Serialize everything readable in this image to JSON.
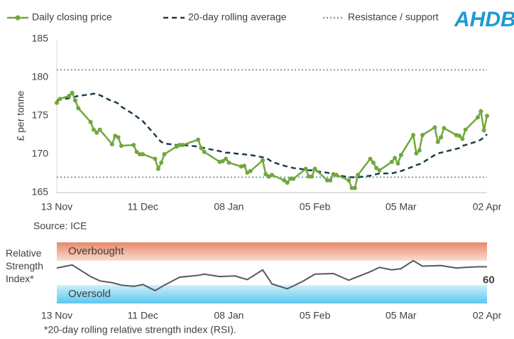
{
  "logo": "AHDB",
  "chart_data": [
    {
      "type": "line",
      "y_label": "£ per tonne",
      "source": "Source: ICE",
      "legend": "top",
      "x": [
        0,
        1,
        4,
        5,
        6,
        7,
        11,
        12,
        13,
        14,
        18,
        19,
        20,
        21,
        25,
        26,
        27,
        28,
        32,
        33,
        34,
        35,
        39,
        40,
        41,
        46,
        47,
        48,
        53,
        54,
        55,
        56,
        60,
        61,
        62,
        63,
        67,
        68,
        69,
        70,
        74,
        75,
        76,
        77,
        81,
        82,
        83,
        84,
        88,
        89,
        90,
        91,
        95,
        96,
        97,
        98,
        102,
        103,
        104,
        105,
        109,
        110,
        111,
        112,
        116,
        117,
        118,
        119,
        123,
        124,
        125,
        126,
        130,
        131,
        132,
        133,
        137,
        138,
        139,
        140
      ],
      "xlim": [
        0,
        140
      ],
      "xticks": [
        {
          "value": 0,
          "label": "13 Nov"
        },
        {
          "value": 28,
          "label": "11 Dec"
        },
        {
          "value": 56,
          "label": "08 Jan"
        },
        {
          "value": 84,
          "label": "05 Feb"
        },
        {
          "value": 112,
          "label": "05 Mar"
        },
        {
          "value": 140,
          "label": "02 Apr"
        }
      ],
      "ylim": [
        165,
        185
      ],
      "yticks": [
        165,
        170,
        175,
        180,
        185
      ],
      "series": [
        {
          "name": "Daily closing price",
          "color": "#70a83b",
          "style": "solid-markers",
          "values": [
            176.7,
            177.2,
            177.6,
            178.0,
            177.0,
            176.0,
            174.2,
            173.2,
            172.8,
            173.2,
            171.3,
            172.4,
            172.2,
            171.1,
            171.2,
            170.3,
            170.0,
            170.0,
            169.4,
            168.1,
            168.9,
            170.0,
            171.0,
            171.2,
            171.2,
            171.9,
            170.8,
            170.3,
            169.0,
            169.1,
            169.4,
            168.9,
            168.4,
            168.5,
            167.6,
            167.8,
            169.2,
            167.4,
            167.1,
            167.3,
            166.6,
            166.3,
            166.8,
            166.8,
            168.1,
            167.1,
            167.1,
            168.1,
            166.6,
            166.6,
            167.4,
            167.3,
            166.6,
            165.6,
            165.6,
            167.3,
            169.4,
            168.9,
            168.2,
            167.9,
            169.0,
            169.5,
            168.8,
            169.9,
            172.5,
            170.1,
            170.5,
            172.5,
            173.5,
            171.6,
            172.2,
            173.4,
            172.5,
            172.4,
            172.0,
            173.2,
            174.8,
            175.6,
            173.1,
            175.0
          ]
        },
        {
          "name": "20-day rolling average",
          "color": "#1e3b4c",
          "style": "dashed",
          "values": [
            177.0,
            177.1,
            177.3,
            177.4,
            177.5,
            177.6,
            177.8,
            177.9,
            177.8,
            177.7,
            176.9,
            176.8,
            176.6,
            176.2,
            175.2,
            174.9,
            174.6,
            174.3,
            172.5,
            172.0,
            171.6,
            171.4,
            171.2,
            171.2,
            171.2,
            171.0,
            170.9,
            170.8,
            170.4,
            170.3,
            170.2,
            170.2,
            170.0,
            170.0,
            169.9,
            169.9,
            169.6,
            169.5,
            169.3,
            169.0,
            168.5,
            168.4,
            168.3,
            168.2,
            168.0,
            167.9,
            167.9,
            167.8,
            167.6,
            167.5,
            167.4,
            167.3,
            167.0,
            167.0,
            167.0,
            167.0,
            167.2,
            167.3,
            167.4,
            167.5,
            167.5,
            167.6,
            167.7,
            167.8,
            168.4,
            168.6,
            168.7,
            168.9,
            169.9,
            170.1,
            170.2,
            170.3,
            170.7,
            170.8,
            171.1,
            171.2,
            171.7,
            171.9,
            172.2,
            172.6
          ]
        }
      ],
      "reference_lines": {
        "name": "Resistance / support",
        "color": "#7f9ea8",
        "style": "dotted",
        "values": [
          181,
          167
        ]
      }
    },
    {
      "type": "line",
      "y_label": "Relative Strength Index*",
      "footnote": "*20-day rolling relative strength index (RSI).",
      "x": [
        0,
        5,
        11,
        14,
        18,
        21,
        25,
        28,
        32,
        35,
        40,
        46,
        48,
        53,
        58,
        62,
        67,
        70,
        75,
        80,
        84,
        90,
        95,
        102,
        105,
        109,
        112,
        116,
        119,
        125,
        130,
        133,
        137,
        140
      ],
      "xlim": [
        0,
        140
      ],
      "xticks": [
        {
          "value": 0,
          "label": "13 Nov"
        },
        {
          "value": 28,
          "label": "11 Dec"
        },
        {
          "value": 56,
          "label": "08 Jan"
        },
        {
          "value": 84,
          "label": "05 Feb"
        },
        {
          "value": 112,
          "label": "05 Mar"
        },
        {
          "value": 140,
          "label": "02 Apr"
        }
      ],
      "ylim": [
        0,
        100
      ],
      "bands": [
        {
          "label": "Overbought",
          "range": [
            70,
            100
          ],
          "colors": [
            "#e9886b",
            "#f8dccd"
          ]
        },
        {
          "label": "Oversold",
          "range": [
            0,
            30
          ],
          "colors": [
            "#cdeefa",
            "#5cc8f0"
          ]
        }
      ],
      "show_last_value": true,
      "series": [
        {
          "color": "#595959",
          "style": "solid",
          "values": [
            58,
            63,
            44,
            37,
            34,
            30,
            28,
            31,
            21,
            30,
            43,
            46,
            48,
            44,
            45,
            39,
            55,
            32,
            24,
            36,
            48,
            49,
            38,
            52,
            59,
            55,
            57,
            70,
            61,
            62,
            58,
            59,
            60,
            60
          ]
        }
      ]
    }
  ]
}
